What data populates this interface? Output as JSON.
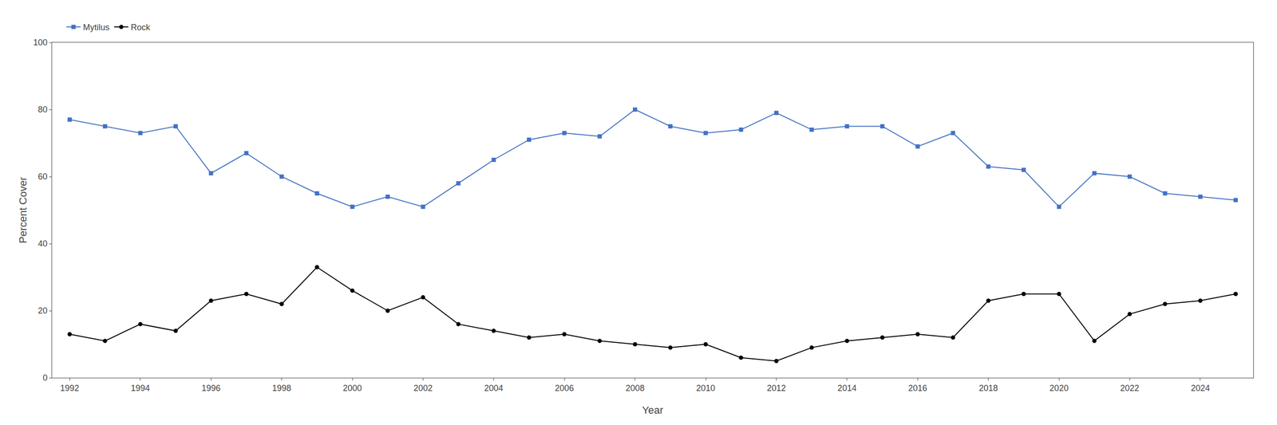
{
  "chart_data": {
    "type": "line",
    "x": [
      1992,
      1993,
      1994,
      1995,
      1996,
      1997,
      1998,
      1999,
      2000,
      2001,
      2002,
      2003,
      2004,
      2005,
      2006,
      2007,
      2008,
      2009,
      2010,
      2011,
      2012,
      2013,
      2014,
      2015,
      2016,
      2017,
      2018,
      2019,
      2020,
      2021,
      2022,
      2023,
      2024,
      2025
    ],
    "series": [
      {
        "name": "Mytilus",
        "color": "#4472C4",
        "marker": "square",
        "line_style": "solid",
        "values": [
          77,
          75,
          73,
          75,
          61,
          67,
          60,
          55,
          51,
          54,
          51,
          58,
          65,
          71,
          73,
          72,
          80,
          75,
          73,
          74,
          79,
          74,
          75,
          75,
          69,
          73,
          63,
          62,
          51,
          61,
          60,
          55,
          54,
          53
        ]
      },
      {
        "name": "Rock",
        "color": "#000000",
        "marker": "circle",
        "line_style": "solid",
        "values": [
          13,
          11,
          16,
          14,
          23,
          25,
          22,
          33,
          26,
          20,
          24,
          16,
          14,
          12,
          13,
          11,
          10,
          9,
          10,
          6,
          5,
          9,
          11,
          12,
          13,
          12,
          23,
          25,
          25,
          11,
          19,
          22,
          23,
          25
        ]
      }
    ],
    "xlabel": "Year",
    "ylabel": "Percent Cover",
    "xlim": [
      1991.5,
      2025.5
    ],
    "xticks": [
      1992,
      1994,
      1996,
      1998,
      2000,
      2002,
      2004,
      2006,
      2008,
      2010,
      2012,
      2014,
      2016,
      2018,
      2020,
      2022,
      2024
    ],
    "ylim": [
      0,
      100
    ],
    "yticks": [
      0,
      20,
      40,
      60,
      80,
      100
    ],
    "grid": false,
    "legend": "upper left"
  }
}
